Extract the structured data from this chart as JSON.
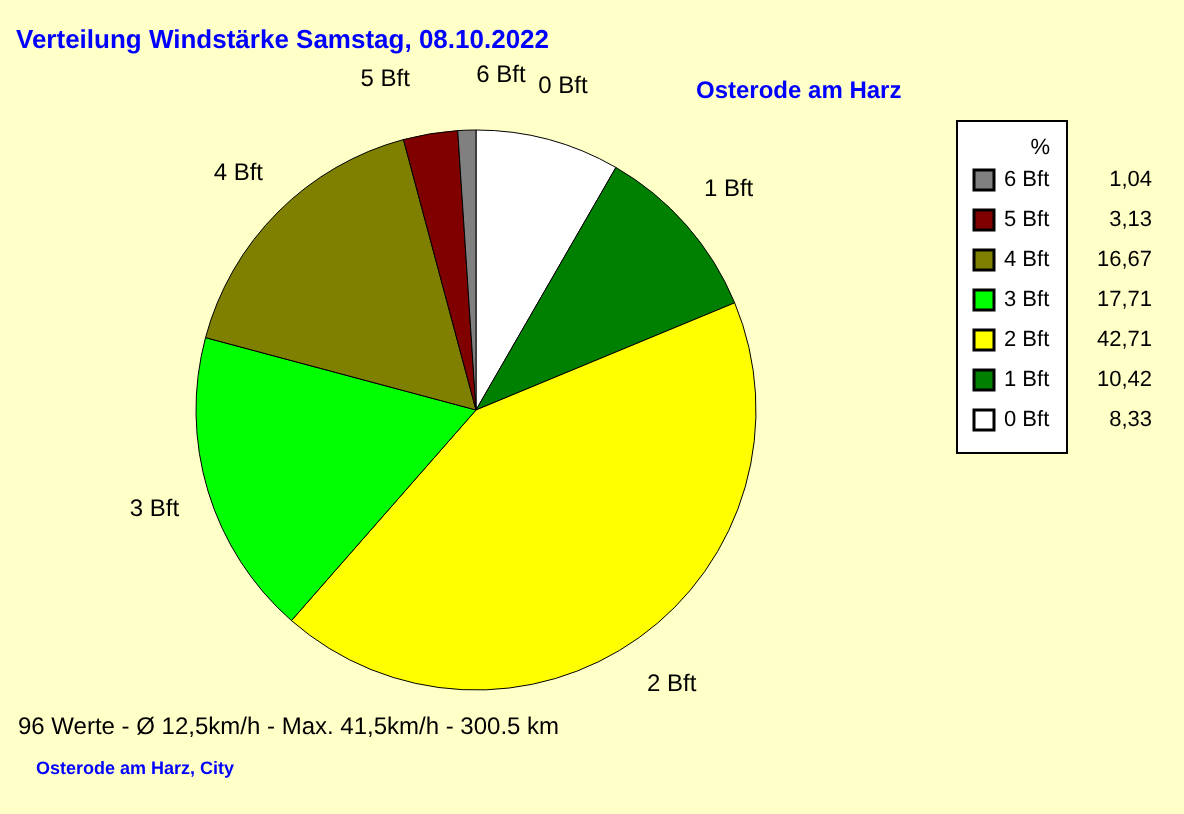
{
  "chart_data": {
    "type": "pie",
    "title": "Verteilung Windstärke  Samstag, 08.10.2022",
    "subtitle": "Osterode am Harz",
    "categories": [
      "0 Bft",
      "1 Bft",
      "2 Bft",
      "3 Bft",
      "4 Bft",
      "5 Bft",
      "6 Bft"
    ],
    "values": [
      8.33,
      10.42,
      42.71,
      17.71,
      16.67,
      3.13,
      1.04
    ],
    "value_labels": [
      "8,33",
      "10,42",
      "42,71",
      "17,71",
      "16,67",
      "3,13",
      "1,04"
    ],
    "colors": [
      "#ffffff",
      "#008000",
      "#ffff00",
      "#00ff00",
      "#808000",
      "#800000",
      "#808080"
    ],
    "legend_title": "%",
    "legend": "right",
    "annotations": [
      "96 Werte   -   Ø 12,5km/h  -  Max. 41,5km/h   -   300.5 km",
      "Osterode am Harz, City"
    ]
  }
}
